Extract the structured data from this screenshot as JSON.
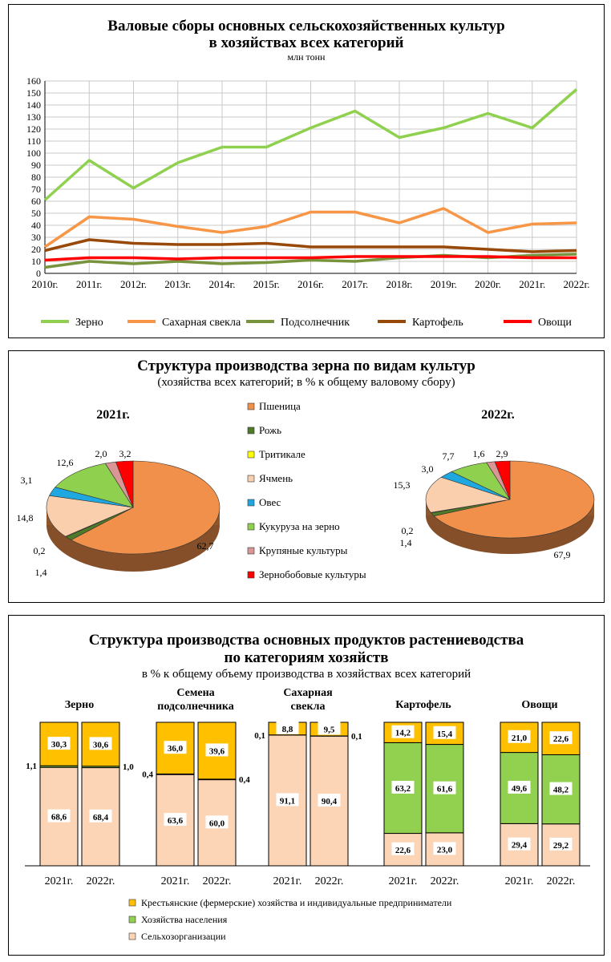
{
  "chart_data": [
    {
      "type": "line",
      "title": "Валовые сборы основных сельскохозяйственных культур в хозяйствах всех категорий",
      "title_line1": "Валовые сборы основных сельскохозяйственных культур",
      "title_line2": "в хозяйствах всех категорий",
      "subtitle": "млн тонн",
      "ylim": [
        0,
        160
      ],
      "yticks": [
        0,
        10,
        20,
        30,
        40,
        50,
        60,
        70,
        80,
        90,
        100,
        110,
        120,
        130,
        140,
        150,
        160
      ],
      "grid": true,
      "legend": "bottom",
      "categories": [
        "2010г.",
        "2011г.",
        "2012г.",
        "2013г.",
        "2014г.",
        "2015г.",
        "2016г.",
        "2017г.",
        "2018г.",
        "2019г.",
        "2020г.",
        "2021г.",
        "2022г."
      ],
      "series": [
        {
          "name": "Зерно",
          "color": "#8fd14f",
          "values": [
            61,
            94,
            71,
            92,
            105,
            105,
            121,
            135,
            113,
            121,
            133,
            121,
            153
          ]
        },
        {
          "name": "Сахарная свекла",
          "color": "#f79646",
          "values": [
            22,
            47,
            45,
            39,
            34,
            39,
            51,
            51,
            42,
            54,
            34,
            41,
            42
          ]
        },
        {
          "name": "Подсолнечник",
          "color": "#77933c",
          "values": [
            5,
            10,
            8,
            10,
            8,
            9,
            11,
            10,
            13,
            15,
            13,
            15,
            16
          ]
        },
        {
          "name": "Картофель",
          "color": "#984807",
          "values": [
            19,
            28,
            25,
            24,
            24,
            25,
            22,
            22,
            22,
            22,
            20,
            18,
            19
          ]
        },
        {
          "name": "Овощи",
          "color": "#ff0000",
          "values": [
            11,
            13,
            13,
            12,
            13,
            13,
            13,
            14,
            14,
            14,
            14,
            13,
            13
          ]
        }
      ]
    },
    {
      "type": "pie",
      "title": "Структура производства зерна по видам культур",
      "subtitle": "(хозяйства всех категорий; в % к общему валовому сбору)",
      "legend": "center",
      "categories": [
        "Пшеница",
        "Рожь",
        "Тритикале",
        "Ячмень",
        "Овес",
        "Кукуруза на зерно",
        "Крупяные культуры",
        "Зернобобовые культуры"
      ],
      "colors": [
        "#f0904a",
        "#4f7a28",
        "#ffff00",
        "#f9cfae",
        "#1fa8e0",
        "#8fd14f",
        "#d99694",
        "#ff0000"
      ],
      "series": [
        {
          "name": "2021г.",
          "values": [
            62.7,
            1.4,
            0.2,
            14.8,
            3.1,
            12.6,
            2.0,
            3.2
          ],
          "labels": [
            "62,7",
            "1,4",
            "0,2",
            "14,8",
            "3,1",
            "12,6",
            "2,0",
            "3,2"
          ]
        },
        {
          "name": "2022г.",
          "values": [
            67.9,
            1.4,
            0.2,
            15.3,
            3.0,
            7.7,
            1.6,
            2.9
          ],
          "labels": [
            "67,9",
            "1,4",
            "0,2",
            "15,3",
            "3,0",
            "7,7",
            "1,6",
            "2,9"
          ]
        }
      ]
    },
    {
      "type": "bar",
      "stacked": true,
      "title_line1": "Структура производства основных продуктов растениеводства",
      "title_line2": "по категориям хозяйств",
      "subtitle": "в % к общему объему производства в хозяйствах всех категорий",
      "ylim": [
        0,
        100
      ],
      "legend": "bottom",
      "series_names": [
        "Сельхозорганизации",
        "Хозяйства населения",
        "Крестьянские (фермерские) хозяйства и индивидуальные предприниматели"
      ],
      "colors": [
        "#fbd5b5",
        "#92d050",
        "#ffc000"
      ],
      "groups": [
        {
          "name": "Зерно",
          "bars": [
            {
              "year": "2021г.",
              "values": [
                68.6,
                1.1,
                30.3
              ],
              "labels": [
                "68,6",
                "1,1",
                "30,3"
              ]
            },
            {
              "year": "2022г.",
              "values": [
                68.4,
                1.0,
                30.6
              ],
              "labels": [
                "68,4",
                "1,0",
                "30,6"
              ]
            }
          ]
        },
        {
          "name": "Семена подсолнечника",
          "name_lines": [
            "Семена",
            "подсолнечника"
          ],
          "bars": [
            {
              "year": "2021г.",
              "values": [
                63.6,
                0.4,
                36.0
              ],
              "labels": [
                "63,6",
                "0,4",
                "36,0"
              ]
            },
            {
              "year": "2022г.",
              "values": [
                60.0,
                0.4,
                39.6
              ],
              "labels": [
                "60,0",
                "0,4",
                "39,6"
              ]
            }
          ]
        },
        {
          "name": "Сахарная свекла",
          "name_lines": [
            "Сахарная",
            "свекла"
          ],
          "bars": [
            {
              "year": "2021г.",
              "values": [
                91.1,
                0.1,
                8.8
              ],
              "labels": [
                "91,1",
                "0,1",
                "8,8"
              ]
            },
            {
              "year": "2022г.",
              "values": [
                90.4,
                0.1,
                9.5
              ],
              "labels": [
                "90,4",
                "0,1",
                "9,5"
              ]
            }
          ]
        },
        {
          "name": "Картофель",
          "bars": [
            {
              "year": "2021г.",
              "values": [
                22.6,
                63.2,
                14.2
              ],
              "labels": [
                "22,6",
                "63,2",
                "14,2"
              ]
            },
            {
              "year": "2022г.",
              "values": [
                23.0,
                61.6,
                15.4
              ],
              "labels": [
                "23,0",
                "61,6",
                "15,4"
              ]
            }
          ]
        },
        {
          "name": "Овощи",
          "bars": [
            {
              "year": "2021г.",
              "values": [
                29.4,
                49.6,
                21.0
              ],
              "labels": [
                "29,4",
                "49,6",
                "21,0"
              ]
            },
            {
              "year": "2022г.",
              "values": [
                29.2,
                48.2,
                22.6
              ],
              "labels": [
                "29,2",
                "48,2",
                "22,6"
              ]
            }
          ]
        }
      ]
    }
  ]
}
